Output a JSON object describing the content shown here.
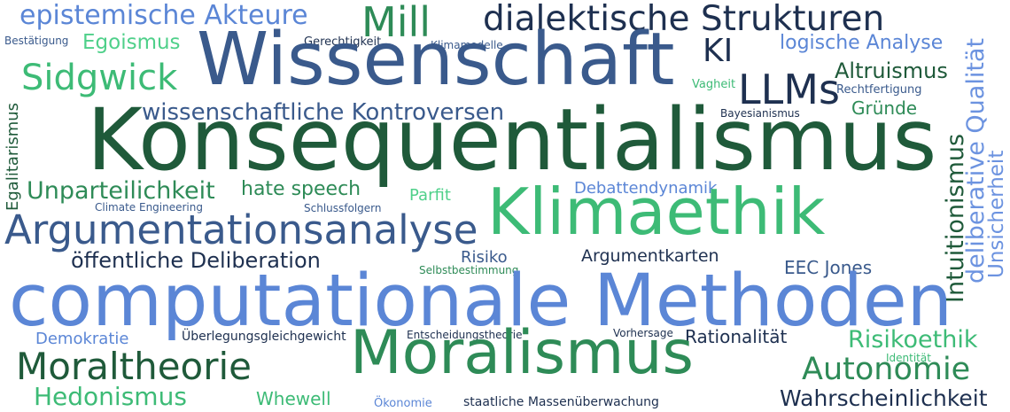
{
  "words": {
    "epistemische_akteure": "epistemische Akteure",
    "mill": "Mill",
    "dialektische_strukturen": "dialektische Strukturen",
    "bestaetigung": "Bestätigung",
    "egoismus": "Egoismus",
    "gerechtigkeit": "Gerechtigkeit",
    "klimamodelle": "Klimamodelle",
    "wissenschaft": "Wissenschaft",
    "ki": "KI",
    "logische_analyse": "logische Analyse",
    "sidgwick": "Sidgwick",
    "altruismus": "Altruismus",
    "vagheit": "Vagheit",
    "llms": "LLMs",
    "rechtfertigung": "Rechtfertigung",
    "gruende": "Gründe",
    "wissenschaftliche_kontroversen": "wissenschaftliche Kontroversen",
    "bayesianismus": "Bayesianismus",
    "konsequentialismus": "Konsequentialismus",
    "egalitarismus": "Egalitarismus",
    "unparteilichkeit": "Unparteilichkeit",
    "hate_speech": "hate speech",
    "parfit": "Parfit",
    "debattendynamik": "Debattendynamik",
    "climate_engineering": "Climate Engineering",
    "schlussfolgern": "Schlussfolgern",
    "klimaethik": "Klimaethik",
    "argumentationsanalyse": "Argumentationsanalyse",
    "oeffentliche_deliberation": "öffentliche Deliberation",
    "risiko": "Risiko",
    "argumentkarten": "Argumentkarten",
    "selbstbestimmung": "Selbstbestimmung",
    "eec_jones": "EEC Jones",
    "computationale_methoden": "computationale Methoden",
    "intuitionismus": "Intuitionismus",
    "deliberative_qualitaet": "deliberative Qualität",
    "unsicherheit": "Unsicherheit",
    "demokratie": "Demokratie",
    "ueberlegungsgleichgewicht": "Überlegungsgleichgewicht",
    "entscheidungstheorie": "Entscheidungstheorie",
    "vorhersage": "Vorhersage",
    "rationalitaet": "Rationalität",
    "risikoethik": "Risikoethik",
    "moraltheorie": "Moraltheorie",
    "moralismus": "Moralismus",
    "identitaet": "Identität",
    "autonomie": "Autonomie",
    "hedonismus": "Hedonismus",
    "whewell": "Whewell",
    "oekonomie": "Ökonomie",
    "staatliche_massenueberwachung": "staatliche Massenüberwachung",
    "wahrscheinlichkeit": "Wahrscheinlichkeit"
  },
  "palette": {
    "dark_green": "#1f5a3a",
    "mid_green": "#2e8b57",
    "light_green": "#3dbb76",
    "bright_green": "#4fd08a",
    "dark_navy": "#1e3050",
    "steel_blue": "#3a5a8c",
    "light_blue": "#5b86d6",
    "periwinkle": "#6c93e0"
  }
}
